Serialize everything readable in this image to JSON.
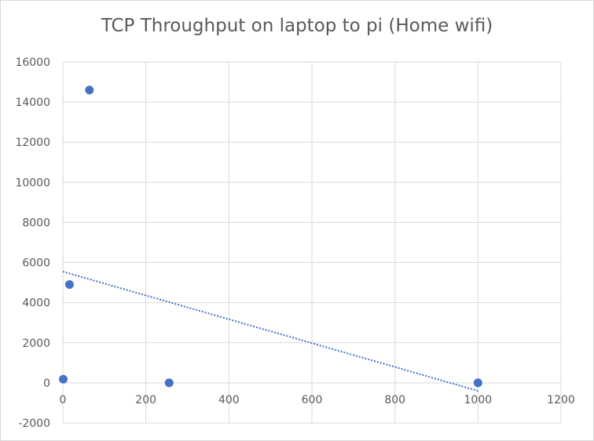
{
  "chart_data": {
    "type": "scatter",
    "title": "TCP Throughput on laptop to pi (Home wifi)",
    "xlabel": "",
    "ylabel": "",
    "xlim": [
      0,
      1200
    ],
    "ylim": [
      -2000,
      16000
    ],
    "x_ticks": [
      "0",
      "200",
      "400",
      "600",
      "800",
      "1000",
      "1200"
    ],
    "y_ticks": [
      "-2000",
      "0",
      "2000",
      "4000",
      "6000",
      "8000",
      "10000",
      "12000",
      "14000",
      "16000"
    ],
    "grid": true,
    "legend": "none",
    "series": [
      {
        "color": "#4472c4",
        "points": [
          {
            "x": 1,
            "y": 180
          },
          {
            "x": 16,
            "y": 4900
          },
          {
            "x": 64,
            "y": 14600
          },
          {
            "x": 256,
            "y": 0
          },
          {
            "x": 1000,
            "y": 0
          }
        ]
      }
    ],
    "trendline": {
      "type": "linear",
      "style": "dotted",
      "color": "#4472c4",
      "x_range": [
        0,
        1000
      ],
      "y_values": [
        5550,
        -400
      ]
    }
  }
}
